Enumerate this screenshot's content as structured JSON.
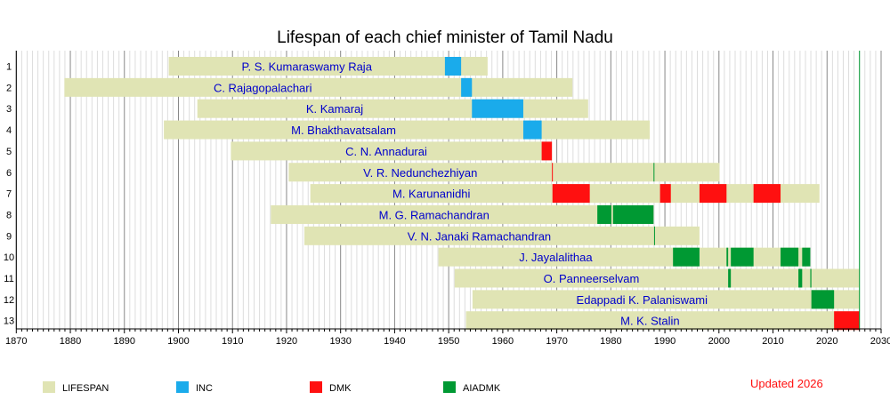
{
  "chart_data": {
    "type": "timeline",
    "title": "Lifespan of each chief minister of Tamil Nadu",
    "xlim": [
      1870,
      2030
    ],
    "x_ticks": [
      1870,
      1880,
      1890,
      1900,
      1910,
      1920,
      1930,
      1940,
      1950,
      1960,
      1970,
      1980,
      1990,
      2000,
      2010,
      2020,
      2030
    ],
    "grid": "vertical, major every 10 years, minor every year",
    "now": 2026,
    "colors": {
      "LIFESPAN": "#e0e4b4",
      "INC": "#1aabeb",
      "DMK": "#ff1010",
      "AIADMK": "#009933"
    },
    "legend": [
      "LIFESPAN",
      "INC",
      "DMK",
      "AIADMK"
    ],
    "legend_placement": "bottom",
    "annotation": "Updated 2026",
    "rows": [
      {
        "n": "1",
        "name": "P. S. Kumaraswamy Raja",
        "life": [
          1898.2,
          1957.2
        ],
        "terms": [
          {
            "party": "INC",
            "from": 1949.3,
            "to": 1952.3
          }
        ]
      },
      {
        "n": "2",
        "name": "C. Rajagopalachari",
        "life": [
          1878.9,
          1972.9
        ],
        "terms": [
          {
            "party": "INC",
            "from": 1952.3,
            "to": 1954.3
          }
        ]
      },
      {
        "n": "3",
        "name": "K. Kamaraj",
        "life": [
          1903.5,
          1975.8
        ],
        "terms": [
          {
            "party": "INC",
            "from": 1954.3,
            "to": 1963.8
          }
        ]
      },
      {
        "n": "4",
        "name": "M. Bhakthavatsalam",
        "life": [
          1897.3,
          1987.2
        ],
        "terms": [
          {
            "party": "INC",
            "from": 1963.8,
            "to": 1967.2
          }
        ]
      },
      {
        "n": "5",
        "name": "C. N. Annadurai",
        "life": [
          1909.7,
          1969.1
        ],
        "terms": [
          {
            "party": "DMK",
            "from": 1967.2,
            "to": 1969.1
          }
        ]
      },
      {
        "n": "6",
        "name": "V. R. Nedunchezhiyan",
        "life": [
          1920.4,
          2000.1
        ],
        "terms": [
          {
            "party": "DMK",
            "from": 1969.1,
            "to": 1969.2
          },
          {
            "party": "AIADMK",
            "from": 1987.9,
            "to": 1988.0
          }
        ]
      },
      {
        "n": "7",
        "name": "M. Karunanidhi",
        "life": [
          1924.4,
          2018.6
        ],
        "terms": [
          {
            "party": "DMK",
            "from": 1969.2,
            "to": 1976.1
          },
          {
            "party": "DMK",
            "from": 1989.1,
            "to": 1991.1
          },
          {
            "party": "DMK",
            "from": 1996.4,
            "to": 2001.4
          },
          {
            "party": "DMK",
            "from": 2006.4,
            "to": 2011.4
          }
        ]
      },
      {
        "n": "8",
        "name": "M. G. Ramachandran",
        "life": [
          1917.1,
          1987.9
        ],
        "terms": [
          {
            "party": "AIADMK",
            "from": 1977.5,
            "to": 1980.1
          },
          {
            "party": "AIADMK",
            "from": 1980.4,
            "to": 1987.9
          }
        ]
      },
      {
        "n": "9",
        "name": "V. N. Janaki Ramachandran",
        "life": [
          1923.3,
          1996.4
        ],
        "terms": [
          {
            "party": "AIADMK",
            "from": 1988.0,
            "to": 1988.1
          }
        ]
      },
      {
        "n": "10",
        "name": "J. Jayalalithaa",
        "life": [
          1948.1,
          2016.9
        ],
        "terms": [
          {
            "party": "AIADMK",
            "from": 1991.5,
            "to": 1996.4
          },
          {
            "party": "AIADMK",
            "from": 2001.4,
            "to": 2001.7
          },
          {
            "party": "AIADMK",
            "from": 2002.2,
            "to": 2006.4
          },
          {
            "party": "AIADMK",
            "from": 2011.4,
            "to": 2014.7
          },
          {
            "party": "AIADMK",
            "from": 2015.4,
            "to": 2016.9
          }
        ]
      },
      {
        "n": "11",
        "name": "O. Panneerselvam",
        "life": [
          1951.1,
          2026
        ],
        "terms": [
          {
            "party": "AIADMK",
            "from": 2001.7,
            "to": 2002.2
          },
          {
            "party": "AIADMK",
            "from": 2014.7,
            "to": 2015.4
          },
          {
            "party": "AIADMK",
            "from": 2016.9,
            "to": 2017.1
          }
        ]
      },
      {
        "n": "12",
        "name": "Edappadi K. Palaniswami",
        "life": [
          1954.4,
          2026
        ],
        "terms": [
          {
            "party": "AIADMK",
            "from": 2017.1,
            "to": 2021.3
          }
        ]
      },
      {
        "n": "13",
        "name": "M. K. Stalin",
        "life": [
          1953.2,
          2026
        ],
        "terms": [
          {
            "party": "DMK",
            "from": 2021.3,
            "to": 2026
          }
        ]
      }
    ]
  }
}
